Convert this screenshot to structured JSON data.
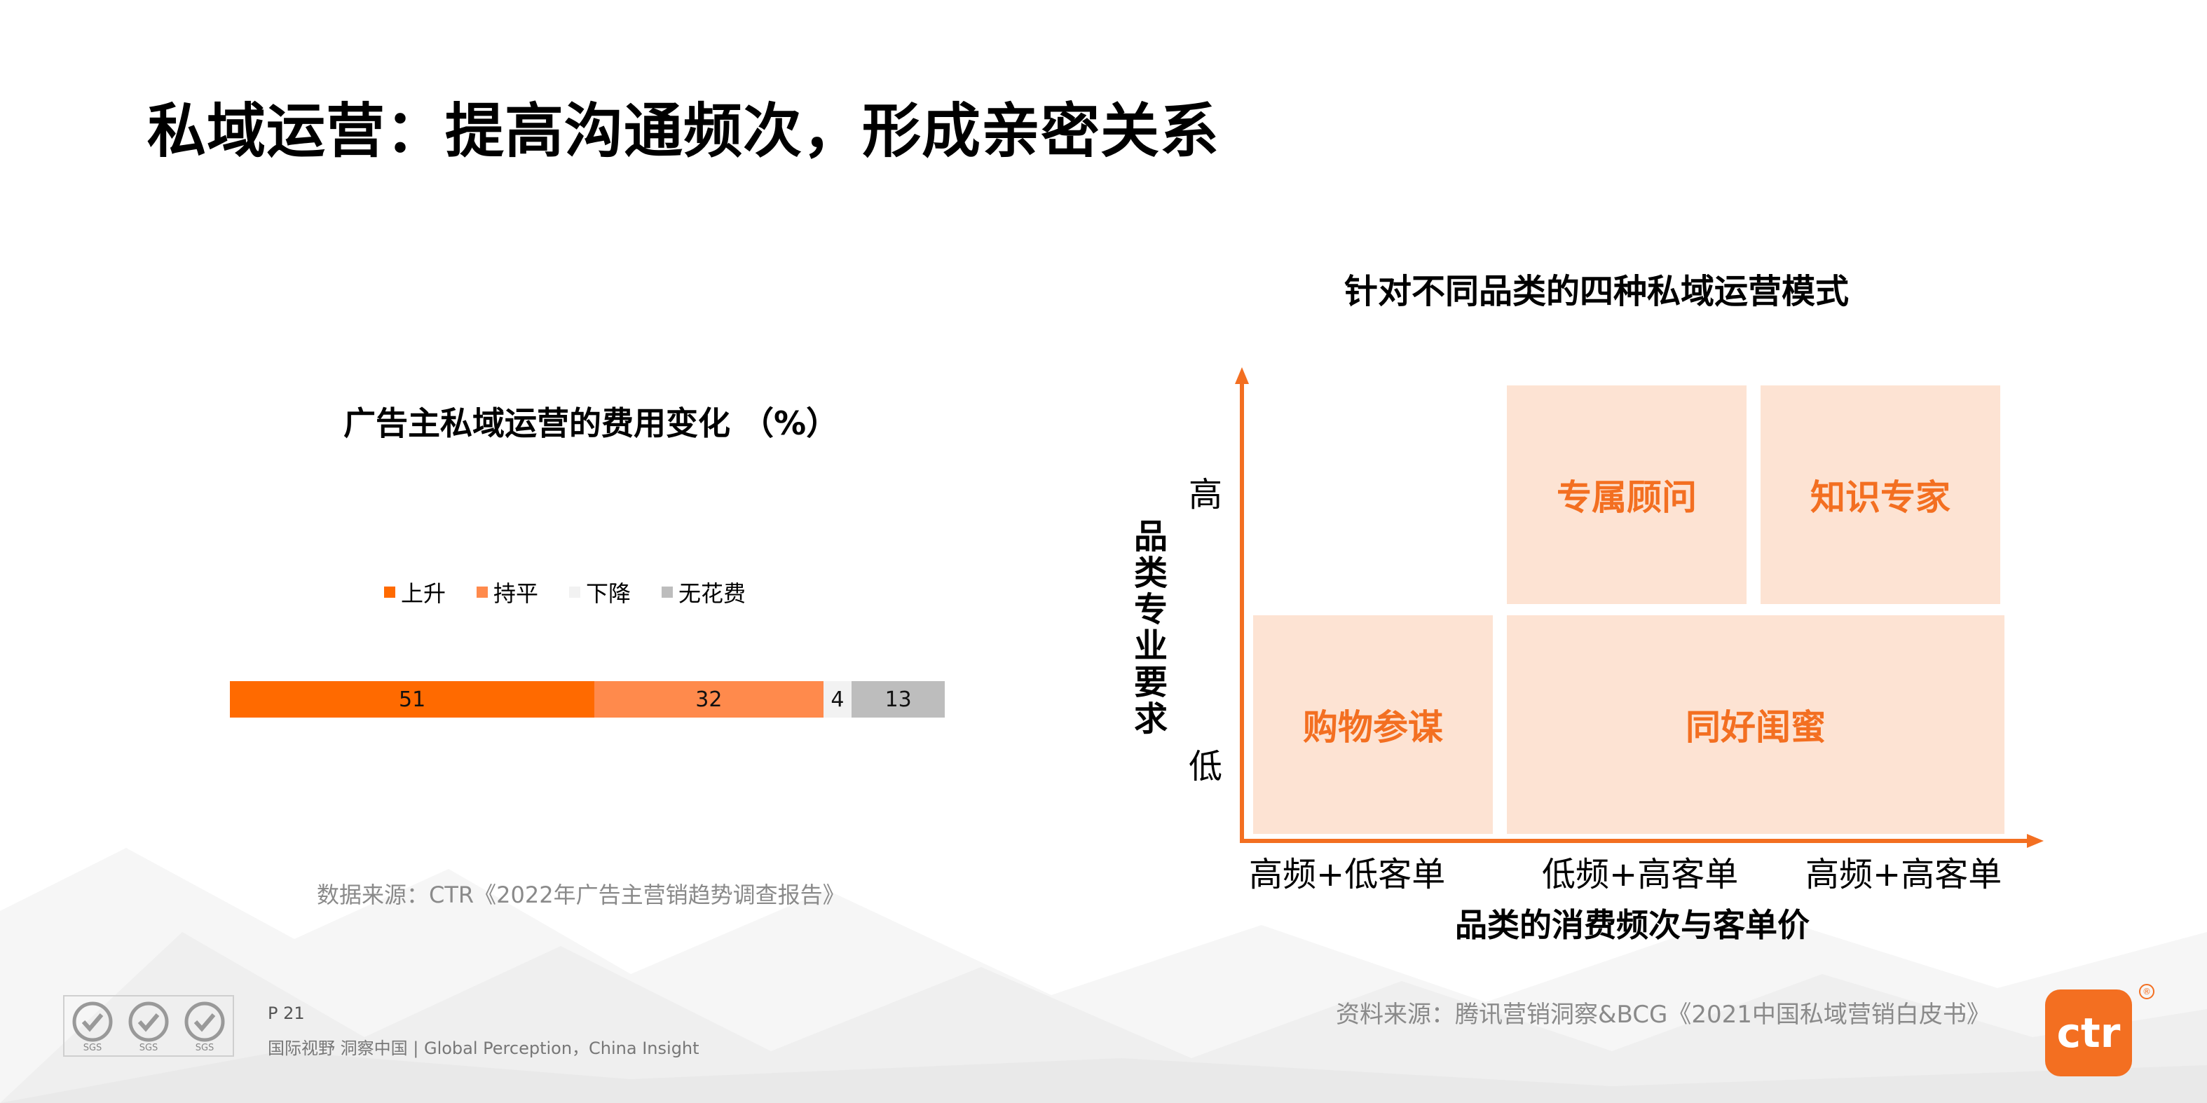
{
  "page": {
    "title": "私域运营：提高沟通频次，形成亲密关系",
    "page_number": "P 21",
    "footer": "国际视野 洞察中国 | Global Perception，China Insight",
    "logo_text": "ctr",
    "logo_mark": "®",
    "accent_color": "#f36f21"
  },
  "chart_data": [
    {
      "type": "bar",
      "orientation": "horizontal-stacked",
      "title": "广告主私域运营的费用变化 （%）",
      "categories": [
        ""
      ],
      "series": [
        {
          "name": "上升",
          "values": [
            51
          ],
          "color": "#ff6a00"
        },
        {
          "name": "持平",
          "values": [
            32
          ],
          "color": "#ff8a4c"
        },
        {
          "name": "下降",
          "values": [
            4
          ],
          "color": "#f2f2f2"
        },
        {
          "name": "无花费",
          "values": [
            13
          ],
          "color": "#bdbdbd"
        }
      ],
      "source": "数据来源：CTR《2022年广告主营销趋势调查报告》"
    },
    {
      "type": "table",
      "title": "针对不同品类的四种私域运营模式",
      "xlabel": "品类的消费频次与客单价",
      "ylabel": "品类专业要求",
      "x_ticks": [
        "高频+低客单",
        "低频+高客单",
        "高频+高客单"
      ],
      "y_ticks": [
        "高",
        "低"
      ],
      "quadrants": [
        {
          "label": "专属顾问",
          "x": "低频+高客单",
          "y": "高"
        },
        {
          "label": "知识专家",
          "x": "高频+高客单",
          "y": "高"
        },
        {
          "label": "购物参谋",
          "x": "高频+低客单",
          "y": "低"
        },
        {
          "label": "同好闺蜜",
          "x": "低频+高客单 / 高频+高客单",
          "y": "低"
        }
      ],
      "source": "资料来源：腾讯营销洞察&BCG《2021中国私域营销白皮书》"
    }
  ],
  "certifications": [
    "SGS",
    "SGS",
    "SGS"
  ]
}
